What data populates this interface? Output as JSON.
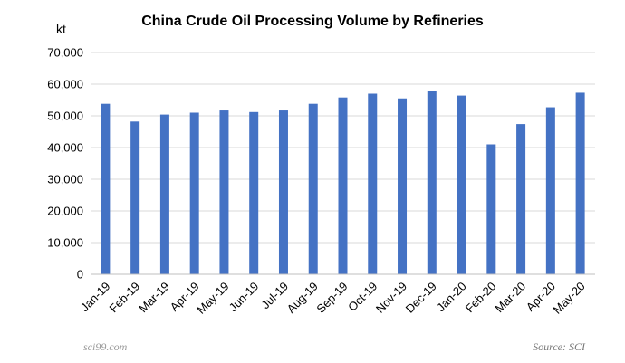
{
  "chart_data": {
    "type": "bar",
    "title": "China Crude Oil Processing Volume by Refineries",
    "ylabel": "kt",
    "xlabel": "",
    "ylim": [
      0,
      70000
    ],
    "yticks": [
      "0",
      "10,000",
      "20,000",
      "30,000",
      "40,000",
      "50,000",
      "60,000",
      "70,000"
    ],
    "grid": true,
    "categories": [
      "Jan-19",
      "Feb-19",
      "Mar-19",
      "Apr-19",
      "May-19",
      "Jun-19",
      "Jul-19",
      "Aug-19",
      "Sep-19",
      "Oct-19",
      "Nov-19",
      "Dec-19",
      "Jan-20",
      "Feb-20",
      "Mar-20",
      "Apr-20",
      "May-20"
    ],
    "values": [
      53800,
      48200,
      50400,
      51000,
      51700,
      51200,
      51700,
      53800,
      55800,
      57000,
      55500,
      57800,
      56400,
      41000,
      47400,
      52700,
      57300
    ],
    "bar_color": "#4472c4",
    "source": "Source: SCI",
    "watermark": "sci99.com"
  }
}
